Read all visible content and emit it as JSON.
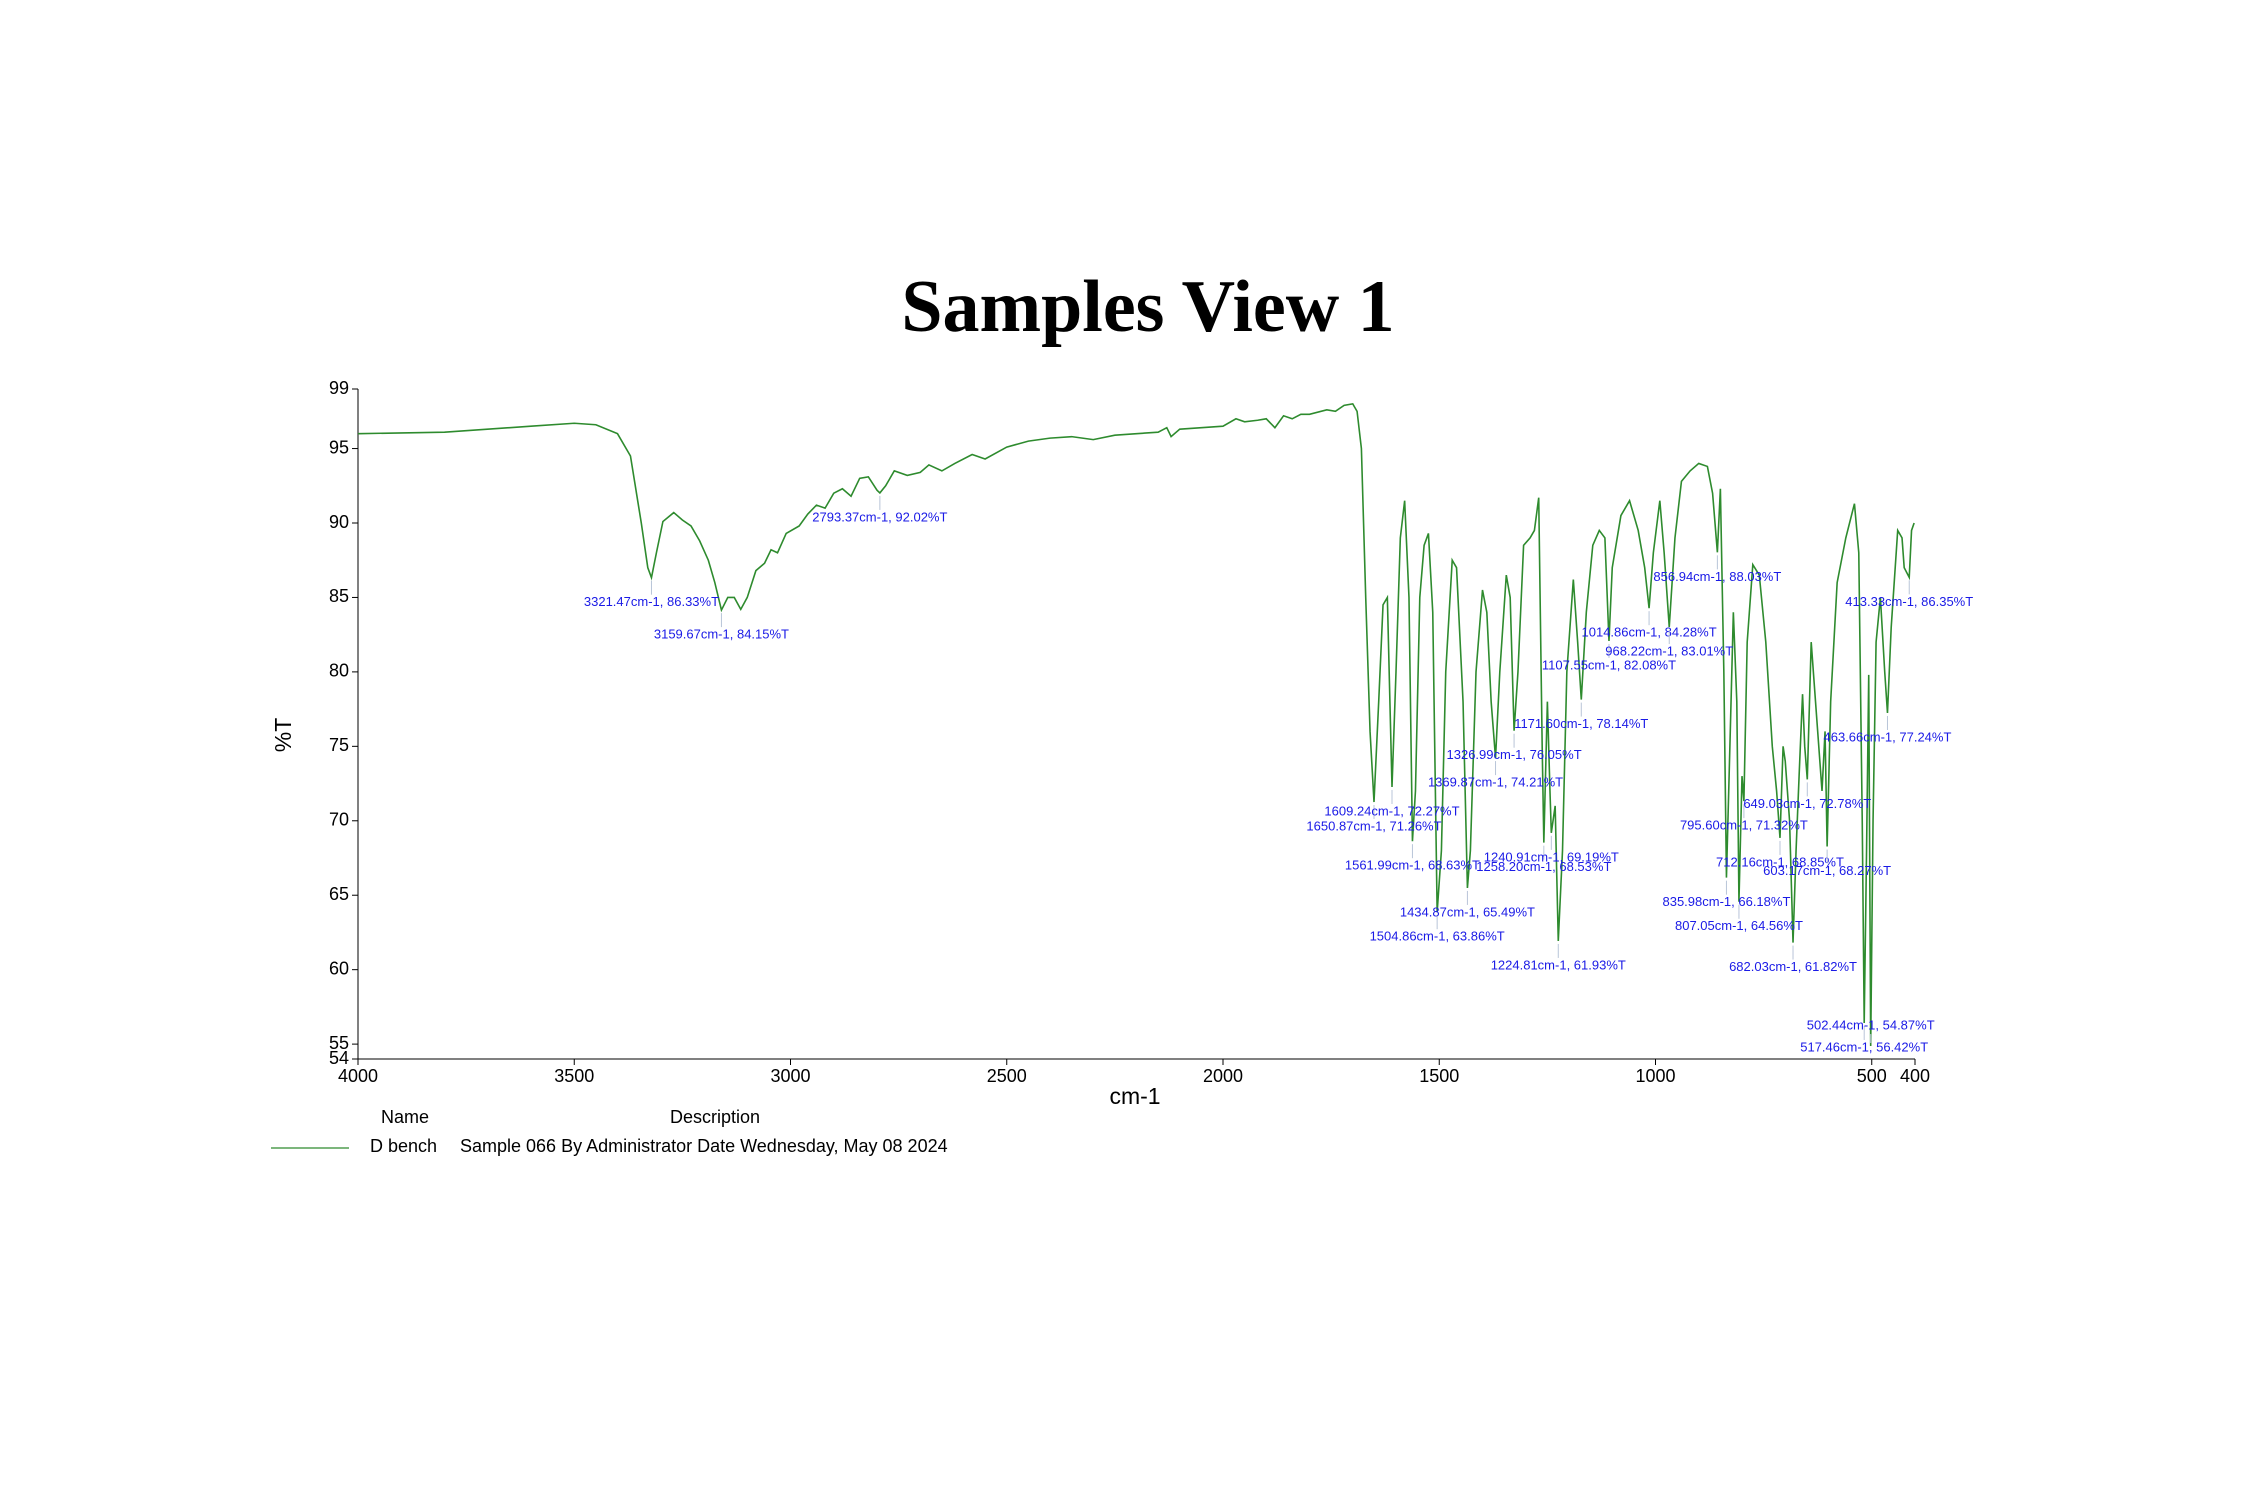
{
  "chart_data": {
    "type": "line",
    "title": "Samples View 1",
    "x_label": "cm-1",
    "y_label": "%T",
    "xlim": [
      4000,
      400
    ],
    "ylim": [
      54,
      99
    ],
    "xticks": [
      4000,
      3500,
      3000,
      2500,
      2000,
      1500,
      1000,
      500,
      400
    ],
    "yticks": [
      99,
      95,
      90,
      85,
      80,
      75,
      70,
      65,
      60,
      55,
      54
    ],
    "legend": {
      "headers": [
        "Name",
        "Description"
      ]
    },
    "x": [
      4000,
      3800,
      3600,
      3500,
      3450,
      3400,
      3370,
      3345,
      3330,
      3321.47,
      3310,
      3295,
      3270,
      3250,
      3230,
      3210,
      3190,
      3175,
      3159.67,
      3145,
      3130,
      3115,
      3100,
      3080,
      3060,
      3045,
      3030,
      3010,
      2980,
      2960,
      2940,
      2920,
      2900,
      2880,
      2860,
      2840,
      2820,
      2800,
      2793.37,
      2780,
      2760,
      2730,
      2700,
      2680,
      2650,
      2620,
      2580,
      2550,
      2500,
      2450,
      2400,
      2350,
      2300,
      2250,
      2200,
      2150,
      2130,
      2120,
      2100,
      2050,
      2000,
      1970,
      1950,
      1920,
      1900,
      1880,
      1860,
      1840,
      1820,
      1800,
      1760,
      1740,
      1720,
      1700,
      1690,
      1680,
      1670,
      1660,
      1650.87,
      1640,
      1630,
      1620,
      1609.24,
      1600,
      1590,
      1580,
      1570,
      1561.99,
      1555,
      1545,
      1535,
      1525,
      1515,
      1504.86,
      1495,
      1485,
      1470,
      1460,
      1445,
      1434.87,
      1428,
      1415,
      1400,
      1390,
      1380,
      1369.87,
      1360,
      1345,
      1336,
      1326.99,
      1318,
      1305,
      1290,
      1280,
      1270,
      1262,
      1258.2,
      1250,
      1244,
      1240.91,
      1232,
      1224.81,
      1215,
      1205,
      1190,
      1180,
      1171.6,
      1160,
      1145,
      1130,
      1117,
      1107.55,
      1100,
      1080,
      1060,
      1040,
      1025,
      1014.86,
      1005,
      990,
      980,
      968.22,
      955,
      940,
      920,
      900,
      880,
      868,
      856.94,
      850,
      842,
      835.98,
      828,
      820,
      812,
      807.05,
      800,
      795.6,
      788,
      775,
      760,
      745,
      730,
      720,
      712.16,
      705,
      700,
      690,
      682.03,
      675,
      668,
      660,
      655,
      649.03,
      640,
      625,
      615,
      608,
      603.17,
      595,
      580,
      560,
      540,
      530,
      522,
      517.46,
      512,
      507,
      502.44,
      497,
      490,
      480,
      470,
      463.66,
      455,
      440,
      430,
      425,
      413.33,
      408,
      402
    ],
    "series": [
      {
        "name": "D bench",
        "description": "Sample 066 By Administrator Date Wednesday, May 08 2024",
        "color": "#2e8b2e",
        "values": [
          96.0,
          96.1,
          96.5,
          96.7,
          96.6,
          96.0,
          94.5,
          90,
          87,
          86.33,
          88,
          90.1,
          90.7,
          90.2,
          89.8,
          88.8,
          87.5,
          86,
          84.15,
          85,
          85.0,
          84.2,
          85,
          86.8,
          87.3,
          88.2,
          88.0,
          89.3,
          89.8,
          90.6,
          91.2,
          91.0,
          92.0,
          92.3,
          91.8,
          93.0,
          93.1,
          92.2,
          92.02,
          92.5,
          93.5,
          93.2,
          93.4,
          93.9,
          93.5,
          94.0,
          94.6,
          94.3,
          95.1,
          95.5,
          95.7,
          95.8,
          95.6,
          95.9,
          96.0,
          96.1,
          96.4,
          95.8,
          96.3,
          96.4,
          96.5,
          97.0,
          96.8,
          96.9,
          97.0,
          96.4,
          97.2,
          97.0,
          97.3,
          97.3,
          97.6,
          97.5,
          97.9,
          98.0,
          97.5,
          95,
          85,
          76,
          71.26,
          78,
          84.5,
          85,
          72.27,
          80,
          89,
          91.5,
          85,
          68.63,
          72,
          85,
          88.5,
          89.3,
          84,
          63.86,
          68,
          80,
          87.5,
          87,
          78,
          65.49,
          68,
          80,
          85.5,
          84,
          78,
          74.21,
          80,
          86.5,
          85,
          76.05,
          80,
          88.5,
          89,
          89.5,
          91.7,
          75,
          68.53,
          78,
          72,
          69.19,
          71,
          61.93,
          68,
          80,
          86.2,
          82,
          78.14,
          84,
          88.5,
          89.5,
          89,
          82.08,
          87,
          90.5,
          91.5,
          89.5,
          87,
          84.28,
          88,
          91.5,
          88,
          83.01,
          89,
          92.8,
          93.5,
          94,
          93.8,
          92,
          88.03,
          92.3,
          80,
          66.18,
          75,
          84,
          78,
          64.56,
          73,
          71.32,
          82,
          87.2,
          86.5,
          82,
          75,
          72,
          68.85,
          75,
          74,
          70,
          61.82,
          68,
          73,
          78.5,
          75,
          72.78,
          82,
          76,
          72,
          76,
          68.27,
          78,
          86,
          89,
          91.3,
          88,
          70,
          56.42,
          68,
          79.8,
          54.87,
          70,
          82,
          85,
          80,
          77.24,
          83,
          89.5,
          89,
          87,
          86.35,
          89.5,
          90.0
        ]
      }
    ],
    "annotations": [
      {
        "x": 3321.47,
        "y": 86.33,
        "label": "3321.47cm-1, 86.33%T"
      },
      {
        "x": 3159.67,
        "y": 84.15,
        "label": "3159.67cm-1, 84.15%T"
      },
      {
        "x": 2793.37,
        "y": 92.02,
        "label": "2793.37cm-1, 92.02%T"
      },
      {
        "x": 1650.87,
        "y": 71.26,
        "label": "1650.87cm-1, 71.26%T"
      },
      {
        "x": 1609.24,
        "y": 72.27,
        "label": "1609.24cm-1, 72.27%T"
      },
      {
        "x": 1561.99,
        "y": 68.63,
        "label": "1561.99cm-1, 68.63%T"
      },
      {
        "x": 1504.86,
        "y": 63.86,
        "label": "1504.86cm-1, 63.86%T"
      },
      {
        "x": 1434.87,
        "y": 65.49,
        "label": "1434.87cm-1, 65.49%T"
      },
      {
        "x": 1369.87,
        "y": 74.21,
        "label": "1369.87cm-1, 74.21%T"
      },
      {
        "x": 1326.99,
        "y": 76.05,
        "label": "1326.99cm-1, 76.05%T"
      },
      {
        "x": 1258.2,
        "y": 68.53,
        "label": "1258.20cm-1, 68.53%T"
      },
      {
        "x": 1240.91,
        "y": 69.19,
        "label": "1240.91cm-1, 69.19%T"
      },
      {
        "x": 1224.81,
        "y": 61.93,
        "label": "1224.81cm-1, 61.93%T"
      },
      {
        "x": 1171.6,
        "y": 78.14,
        "label": "1171.60cm-1, 78.14%T"
      },
      {
        "x": 1107.55,
        "y": 82.08,
        "label": "1107.55cm-1, 82.08%T"
      },
      {
        "x": 1014.86,
        "y": 84.28,
        "label": "1014.86cm-1, 84.28%T"
      },
      {
        "x": 968.22,
        "y": 83.01,
        "label": "968.22cm-1, 83.01%T"
      },
      {
        "x": 856.94,
        "y": 88.03,
        "label": "856.94cm-1, 88.03%T"
      },
      {
        "x": 835.98,
        "y": 66.18,
        "label": "835.98cm-1, 66.18%T"
      },
      {
        "x": 807.05,
        "y": 64.56,
        "label": "807.05cm-1, 64.56%T"
      },
      {
        "x": 795.6,
        "y": 71.32,
        "label": "795.60cm-1, 71.32%T"
      },
      {
        "x": 712.16,
        "y": 68.85,
        "label": "712.16cm-1, 68.85%T"
      },
      {
        "x": 682.03,
        "y": 61.82,
        "label": "682.03cm-1, 61.82%T"
      },
      {
        "x": 649.03,
        "y": 72.78,
        "label": "649.03cm-1, 72.78%T"
      },
      {
        "x": 603.17,
        "y": 68.27,
        "label": "603.17cm-1, 68.27%T"
      },
      {
        "x": 517.46,
        "y": 56.42,
        "label": "517.46cm-1, 56.42%T"
      },
      {
        "x": 502.44,
        "y": 54.87,
        "label": "502.44cm-1, 54.87%T"
      },
      {
        "x": 463.66,
        "y": 77.24,
        "label": "463.66cm-1, 77.24%T"
      },
      {
        "x": 413.33,
        "y": 86.35,
        "label": "413.33cm-1, 86.35%T"
      }
    ]
  }
}
